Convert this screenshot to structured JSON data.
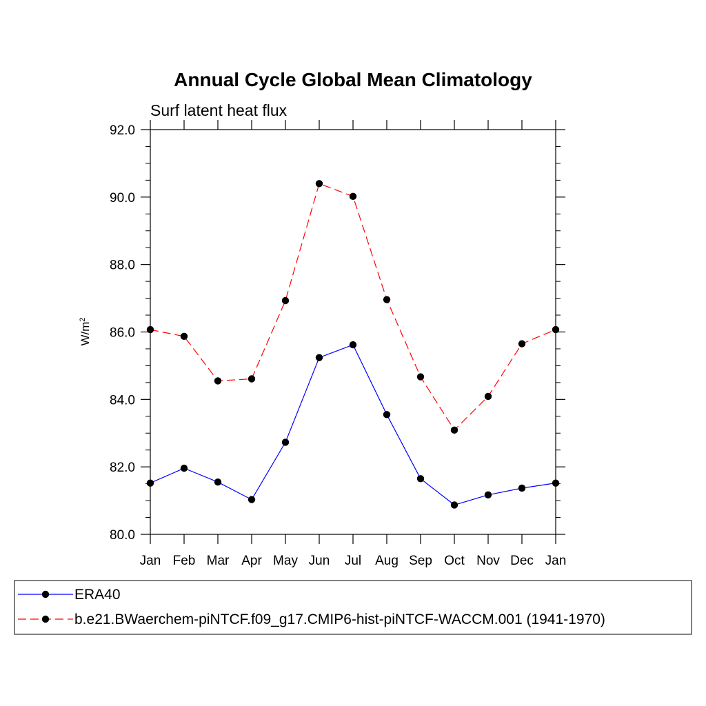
{
  "chart_data": {
    "type": "line",
    "title": "Annual Cycle Global Mean Climatology",
    "subtitle": "Surf latent heat flux",
    "ylabel": "W/m",
    "ylabel_sup": "2",
    "xlabel": "",
    "categories": [
      "Jan",
      "Feb",
      "Mar",
      "Apr",
      "May",
      "Jun",
      "Jul",
      "Aug",
      "Sep",
      "Oct",
      "Nov",
      "Dec",
      "Jan"
    ],
    "ylim": [
      80.0,
      92.0
    ],
    "yticks": [
      80.0,
      82.0,
      84.0,
      86.0,
      88.0,
      90.0,
      92.0
    ],
    "ytick_labels": [
      "80.0",
      "82.0",
      "84.0",
      "86.0",
      "88.0",
      "90.0",
      "92.0"
    ],
    "y_minor_step": 0.5,
    "grid": false,
    "legend_placement": "bottom",
    "series": [
      {
        "name": "ERA40",
        "color": "#0000ff",
        "dash": "solid",
        "marker": "filled-circle",
        "values": [
          81.52,
          81.96,
          81.55,
          81.03,
          82.73,
          85.24,
          85.62,
          83.55,
          81.65,
          80.87,
          81.17,
          81.37,
          81.52
        ]
      },
      {
        "name": "b.e21.BWaerchem-piNTCF.f09_g17.CMIP6-hist-piNTCF-WACCM.001 (1941-1970)",
        "color": "#ff0000",
        "dash": "dashed",
        "marker": "filled-circle",
        "values": [
          86.07,
          85.87,
          84.55,
          84.61,
          86.93,
          90.4,
          90.02,
          86.96,
          84.67,
          83.09,
          84.09,
          85.65,
          86.07
        ]
      }
    ]
  }
}
